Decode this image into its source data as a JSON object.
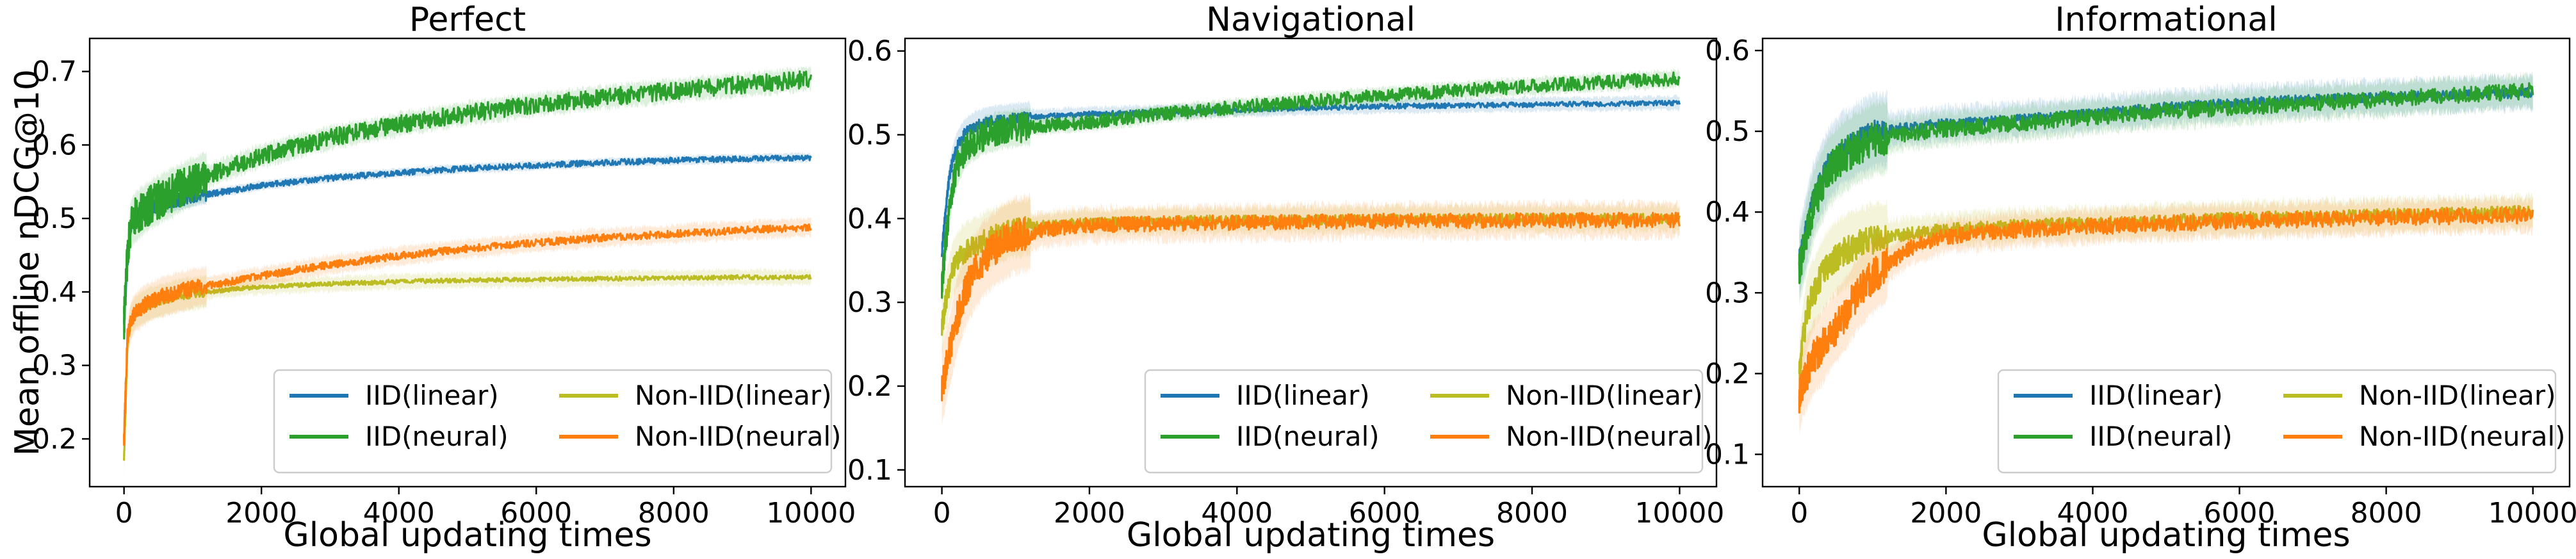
{
  "figure": {
    "y_axis_label": "Mean offline nDCG@10",
    "x_axis_label": "Global updating times"
  },
  "chart_data": [
    {
      "type": "line",
      "title": "Perfect",
      "xlabel": "Global updating times",
      "ylabel": "Mean offline nDCG@10",
      "xlim": [
        -500,
        10500
      ],
      "ylim": [
        0.135,
        0.745
      ],
      "x_ticks": [
        0,
        2000,
        4000,
        6000,
        8000,
        10000
      ],
      "y_ticks": [
        0.2,
        0.3,
        0.4,
        0.5,
        0.6,
        0.7
      ],
      "grid": false,
      "legend": "lower-right",
      "x": [
        0,
        50,
        100,
        150,
        200,
        300,
        400,
        600,
        800,
        1000,
        1500,
        2000,
        3000,
        4000,
        5000,
        6000,
        7000,
        8000,
        9000,
        10000
      ],
      "series": [
        {
          "name": "IID(linear)",
          "color": "#1f77b4",
          "noise": 0.004,
          "band": 0.006,
          "values": [
            0.36,
            0.44,
            0.49,
            0.5,
            0.505,
            0.51,
            0.515,
            0.52,
            0.525,
            0.53,
            0.537,
            0.545,
            0.555,
            0.562,
            0.568,
            0.572,
            0.576,
            0.579,
            0.581,
            0.583
          ]
        },
        {
          "name": "IID(neural)",
          "color": "#2ca02c",
          "noise": 0.012,
          "band": 0.015,
          "values": [
            0.36,
            0.45,
            0.49,
            0.5,
            0.505,
            0.513,
            0.52,
            0.53,
            0.54,
            0.55,
            0.568,
            0.585,
            0.61,
            0.628,
            0.643,
            0.655,
            0.665,
            0.674,
            0.682,
            0.69
          ]
        },
        {
          "name": "Non-IID(linear)",
          "color": "#bcbd22",
          "noise": 0.003,
          "band": 0.01,
          "values": [
            0.17,
            0.33,
            0.36,
            0.37,
            0.375,
            0.38,
            0.385,
            0.39,
            0.395,
            0.398,
            0.403,
            0.407,
            0.411,
            0.414,
            0.416,
            0.417,
            0.418,
            0.419,
            0.42,
            0.42
          ]
        },
        {
          "name": "Non-IID(neural)",
          "color": "#ff7f0e",
          "noise": 0.005,
          "band": 0.012,
          "values": [
            0.2,
            0.34,
            0.36,
            0.37,
            0.375,
            0.382,
            0.388,
            0.395,
            0.4,
            0.405,
            0.413,
            0.422,
            0.437,
            0.449,
            0.459,
            0.467,
            0.474,
            0.479,
            0.484,
            0.488
          ]
        }
      ]
    },
    {
      "type": "line",
      "title": "Navigational",
      "xlabel": "Global updating times",
      "ylabel": "",
      "xlim": [
        -500,
        10500
      ],
      "ylim": [
        0.08,
        0.615
      ],
      "x_ticks": [
        0,
        2000,
        4000,
        6000,
        8000,
        10000
      ],
      "y_ticks": [
        0.1,
        0.2,
        0.3,
        0.4,
        0.5,
        0.6
      ],
      "grid": false,
      "legend": "lower-right",
      "x": [
        0,
        50,
        100,
        150,
        200,
        300,
        400,
        600,
        800,
        1000,
        1500,
        2000,
        3000,
        4000,
        5000,
        6000,
        7000,
        8000,
        9000,
        10000
      ],
      "series": [
        {
          "name": "IID(linear)",
          "color": "#1f77b4",
          "noise": 0.003,
          "band": 0.008,
          "values": [
            0.36,
            0.41,
            0.45,
            0.47,
            0.485,
            0.5,
            0.508,
            0.515,
            0.518,
            0.52,
            0.523,
            0.525,
            0.527,
            0.53,
            0.532,
            0.534,
            0.535,
            0.536,
            0.537,
            0.538
          ]
        },
        {
          "name": "IID(neural)",
          "color": "#2ca02c",
          "noise": 0.008,
          "band": 0.01,
          "values": [
            0.32,
            0.37,
            0.41,
            0.44,
            0.46,
            0.48,
            0.49,
            0.5,
            0.505,
            0.508,
            0.512,
            0.515,
            0.525,
            0.533,
            0.54,
            0.547,
            0.553,
            0.558,
            0.563,
            0.567
          ]
        },
        {
          "name": "Non-IID(linear)",
          "color": "#bcbd22",
          "noise": 0.006,
          "band": 0.015,
          "values": [
            0.27,
            0.3,
            0.32,
            0.34,
            0.35,
            0.36,
            0.365,
            0.375,
            0.382,
            0.388,
            0.393,
            0.395,
            0.397,
            0.398,
            0.398,
            0.399,
            0.4,
            0.4,
            0.4,
            0.4
          ]
        },
        {
          "name": "Non-IID(neural)",
          "color": "#ff7f0e",
          "noise": 0.009,
          "band": 0.02,
          "values": [
            0.2,
            0.22,
            0.24,
            0.26,
            0.28,
            0.31,
            0.33,
            0.355,
            0.37,
            0.38,
            0.388,
            0.392,
            0.394,
            0.395,
            0.396,
            0.397,
            0.397,
            0.398,
            0.398,
            0.398
          ]
        }
      ]
    },
    {
      "type": "line",
      "title": "Informational",
      "xlabel": "Global updating times",
      "ylabel": "",
      "xlim": [
        -500,
        10500
      ],
      "ylim": [
        0.06,
        0.615
      ],
      "x_ticks": [
        0,
        2000,
        4000,
        6000,
        8000,
        10000
      ],
      "y_ticks": [
        0.1,
        0.2,
        0.3,
        0.4,
        0.5,
        0.6
      ],
      "grid": false,
      "legend": "lower-right",
      "x": [
        0,
        50,
        100,
        150,
        200,
        300,
        400,
        600,
        800,
        1000,
        1500,
        2000,
        3000,
        4000,
        5000,
        6000,
        7000,
        8000,
        9000,
        10000
      ],
      "series": [
        {
          "name": "IID(linear)",
          "color": "#1f77b4",
          "noise": 0.006,
          "band": 0.02,
          "values": [
            0.34,
            0.36,
            0.38,
            0.4,
            0.42,
            0.44,
            0.46,
            0.48,
            0.49,
            0.5,
            0.505,
            0.51,
            0.515,
            0.522,
            0.53,
            0.535,
            0.54,
            0.542,
            0.545,
            0.548
          ]
        },
        {
          "name": "IID(neural)",
          "color": "#2ca02c",
          "noise": 0.01,
          "band": 0.02,
          "values": [
            0.33,
            0.35,
            0.37,
            0.39,
            0.41,
            0.43,
            0.45,
            0.47,
            0.48,
            0.49,
            0.498,
            0.503,
            0.51,
            0.518,
            0.525,
            0.53,
            0.535,
            0.54,
            0.545,
            0.55
          ]
        },
        {
          "name": "Non-IID(linear)",
          "color": "#bcbd22",
          "noise": 0.008,
          "band": 0.02,
          "values": [
            0.2,
            0.24,
            0.27,
            0.29,
            0.3,
            0.32,
            0.335,
            0.35,
            0.36,
            0.365,
            0.373,
            0.378,
            0.383,
            0.386,
            0.389,
            0.392,
            0.394,
            0.396,
            0.398,
            0.4
          ]
        },
        {
          "name": "Non-IID(neural)",
          "color": "#ff7f0e",
          "noise": 0.01,
          "band": 0.02,
          "values": [
            0.17,
            0.19,
            0.2,
            0.21,
            0.22,
            0.23,
            0.245,
            0.27,
            0.3,
            0.32,
            0.355,
            0.37,
            0.378,
            0.382,
            0.386,
            0.389,
            0.391,
            0.393,
            0.395,
            0.396
          ]
        }
      ]
    }
  ]
}
